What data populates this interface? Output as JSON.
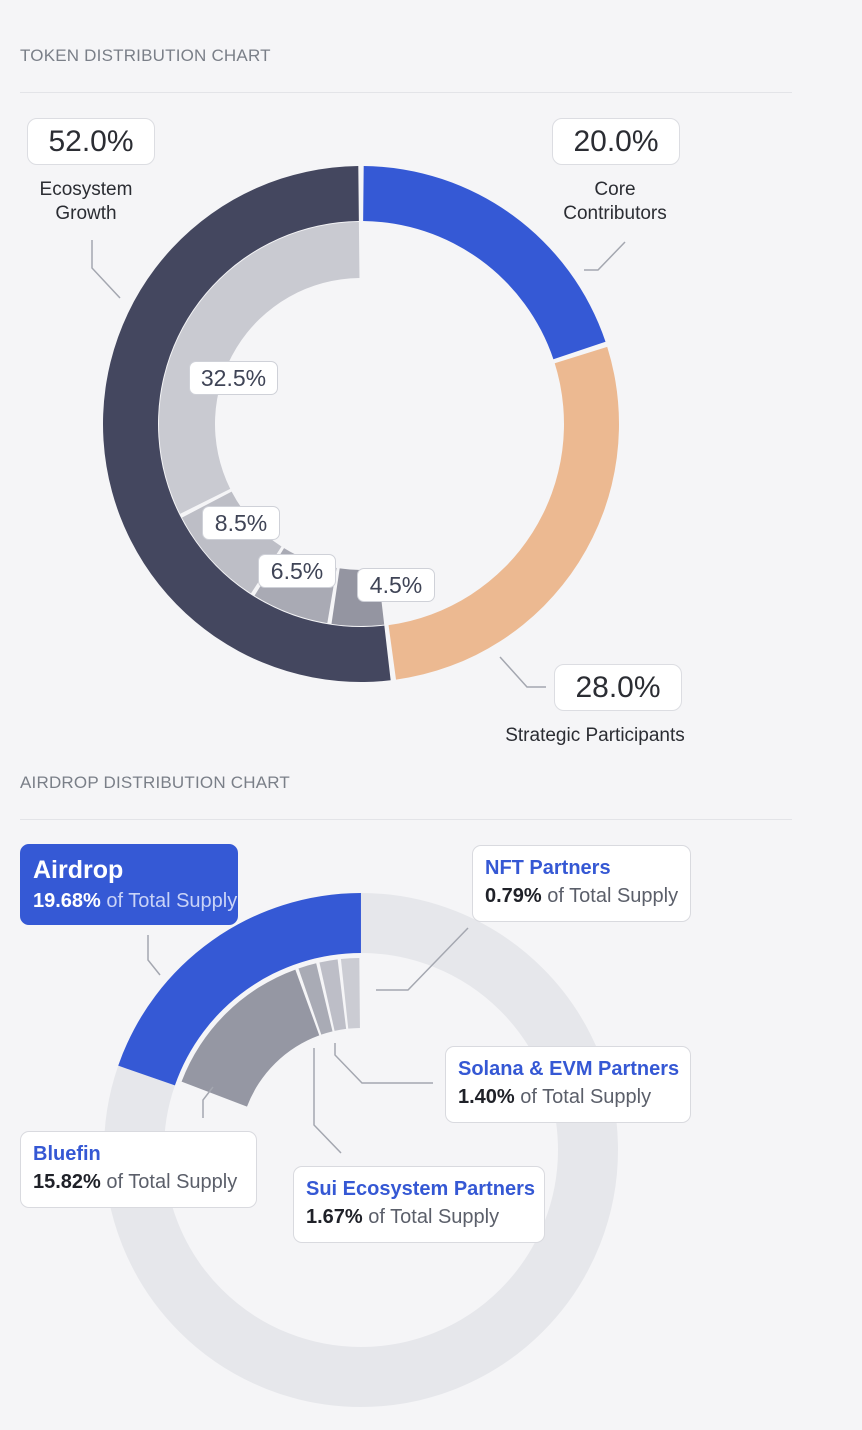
{
  "token_section": {
    "title": "TOKEN DISTRIBUTION CHART"
  },
  "airdrop_section": {
    "title": "AIRDROP DISTRIBUTION CHART"
  },
  "colors": {
    "ecosystem": "#44475f",
    "core": "#3559d5",
    "strategic": "#ecb991",
    "inner_a": "#c9cad1",
    "inner_b": "#bdbec6",
    "inner_c": "#a9aab4",
    "inner_d": "#9495a1",
    "ring_bg": "#e6e7eb",
    "bluefin": "#9597a3",
    "sui": "#a9abb5",
    "solana": "#bdbec7",
    "nft": "#cbccd3",
    "leader": "#a4a7b0"
  },
  "chart_data": [
    {
      "type": "pie",
      "title": "TOKEN DISTRIBUTION CHART",
      "outer_ring": [
        {
          "label": "Ecosystem Growth",
          "value": 52.0,
          "display": "52.0%",
          "color": "#44475f"
        },
        {
          "label": "Core Contributors",
          "value": 20.0,
          "display": "20.0%",
          "color": "#3559d5"
        },
        {
          "label": "Strategic Participants",
          "value": 28.0,
          "display": "28.0%",
          "color": "#ecb991"
        }
      ],
      "inner_ring": [
        {
          "value": 32.5,
          "display": "32.5%",
          "color": "#c9cad1"
        },
        {
          "value": 8.5,
          "display": "8.5%",
          "color": "#bdbec6"
        },
        {
          "value": 6.5,
          "display": "6.5%",
          "color": "#a9aab4"
        },
        {
          "value": 4.5,
          "display": "4.5%",
          "color": "#9495a1"
        }
      ]
    },
    {
      "type": "pie",
      "title": "AIRDROP DISTRIBUTION CHART",
      "total": {
        "label": "Airdrop",
        "value": 19.68,
        "display": "19.68%",
        "suffix": "of Total Supply"
      },
      "segments": [
        {
          "label": "Bluefin",
          "value": 15.82,
          "display": "15.82%",
          "suffix": "of Total Supply",
          "color": "#9597a3"
        },
        {
          "label": "Sui Ecosystem Partners",
          "value": 1.67,
          "display": "1.67%",
          "suffix": "of Total Supply",
          "color": "#a9abb5"
        },
        {
          "label": "Solana & EVM Partners",
          "value": 1.4,
          "display": "1.40%",
          "suffix": "of Total Supply",
          "color": "#bdbec7"
        },
        {
          "label": "NFT Partners",
          "value": 0.79,
          "display": "0.79%",
          "suffix": "of Total Supply",
          "color": "#cbccd3"
        }
      ]
    }
  ]
}
